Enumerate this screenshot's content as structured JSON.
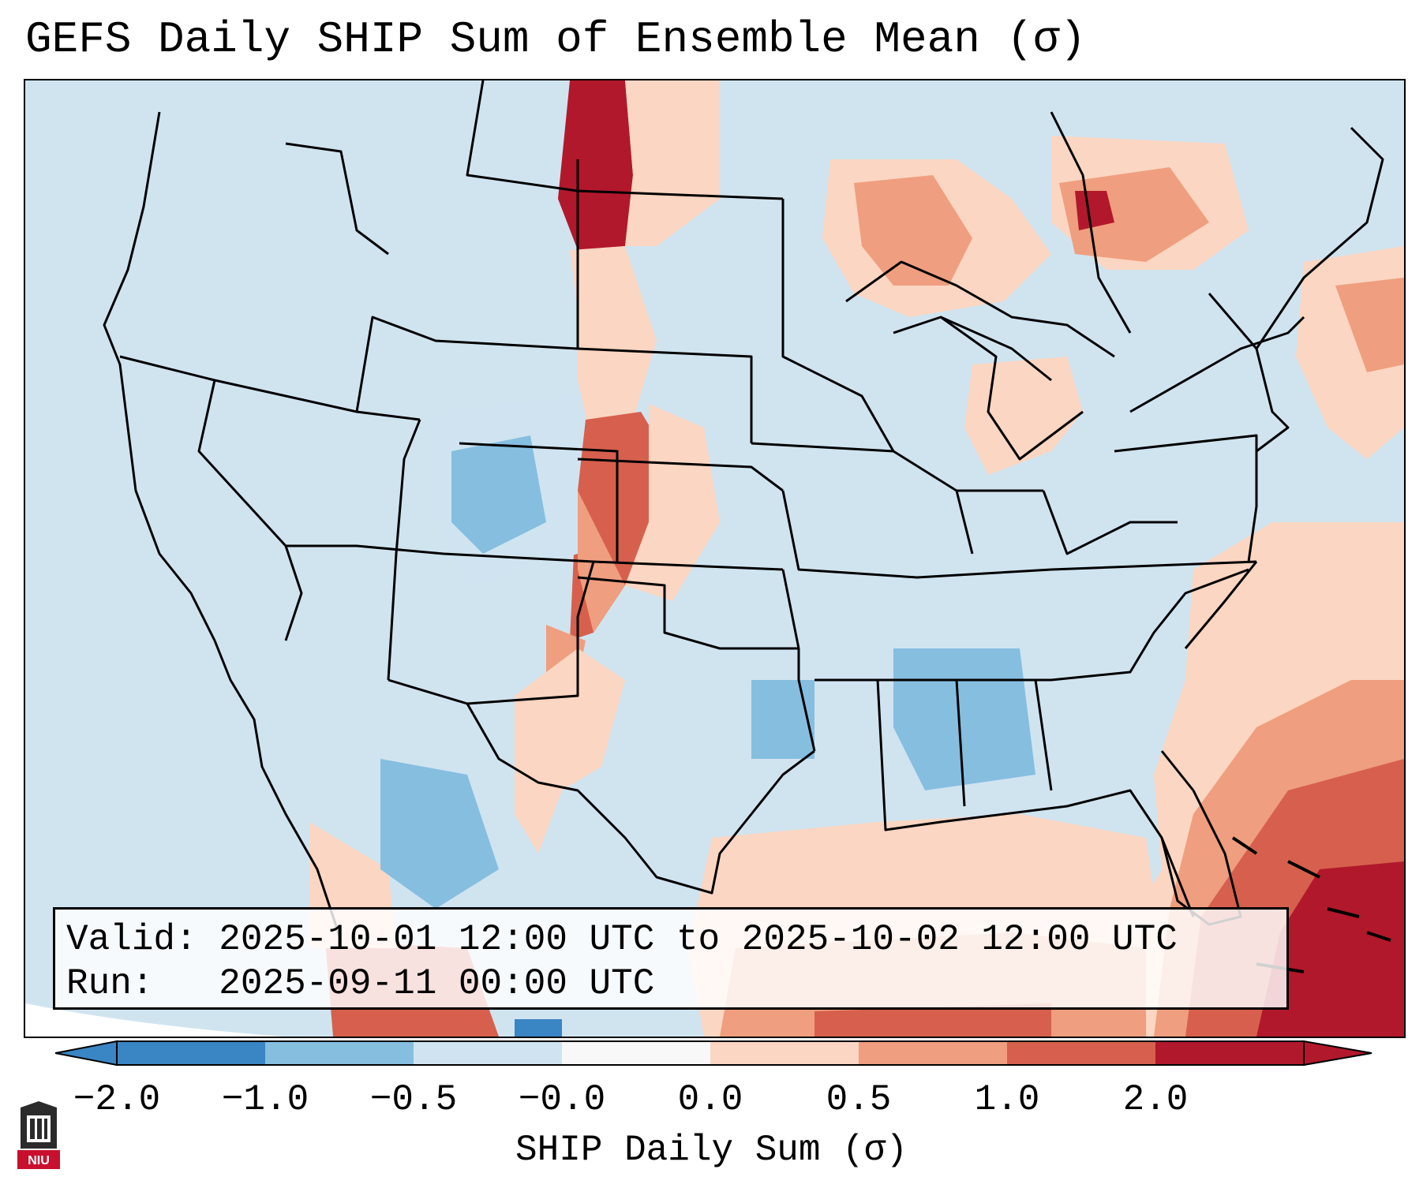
{
  "title": "GEFS Daily SHIP Sum of Ensemble Mean (σ)",
  "info_box": {
    "valid_label": "Valid:",
    "valid_value": "2025-10-01 12:00 UTC to 2025-10-02 12:00 UTC",
    "run_label": "Run:",
    "run_value": "2025-09-11 00:00 UTC"
  },
  "colorbar": {
    "label": "SHIP Daily Sum (σ)",
    "ticks": [
      "−2.0",
      "−1.0",
      "−0.5",
      "−0.0",
      "0.0",
      "0.5",
      "1.0",
      "2.0"
    ],
    "colors": [
      "#3a85c4",
      "#86bee0",
      "#cfe4f0",
      "#f8f8f8",
      "#fbd6c2",
      "#ef9e7f",
      "#d6604d",
      "#b2182b"
    ]
  },
  "logo": {
    "text": "NIU",
    "icon": "niu-logo-icon"
  },
  "map": {
    "region": "CONUS",
    "background_color": "#d0e4f0"
  }
}
